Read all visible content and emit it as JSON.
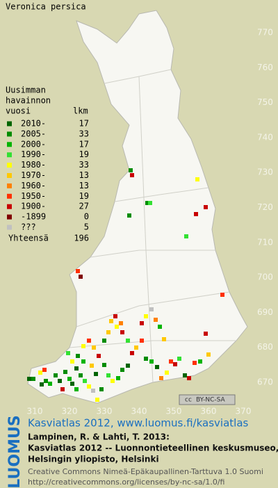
{
  "title": "Veronica persica",
  "legend": {
    "header": [
      "Uusimman",
      "havainnon",
      "vuosi"
    ],
    "count_header": "lkm",
    "items": [
      {
        "label": "2010-",
        "count": 17,
        "color": "#006400"
      },
      {
        "label": "2005-",
        "count": 33,
        "color": "#008c00"
      },
      {
        "label": "2000-",
        "count": 17,
        "color": "#00b400"
      },
      {
        "label": "1990-",
        "count": 19,
        "color": "#33e033"
      },
      {
        "label": "1980-",
        "count": 33,
        "color": "#ffff00"
      },
      {
        "label": "1970-",
        "count": 13,
        "color": "#ffc800"
      },
      {
        "label": "1960-",
        "count": 13,
        "color": "#ff8000"
      },
      {
        "label": "1950-",
        "count": 19,
        "color": "#ff3000"
      },
      {
        "label": "1900-",
        "count": 27,
        "color": "#c80000"
      },
      {
        "label": "-1899",
        "count": 0,
        "color": "#800000"
      },
      {
        "label": "???",
        "count": 5,
        "color": "#c0c0c0"
      }
    ],
    "total_label": "Yhteensä",
    "total": 196
  },
  "grid": {
    "y_labels": [
      "770",
      "760",
      "750",
      "740",
      "730",
      "720",
      "710",
      "700",
      "690",
      "680",
      "670"
    ],
    "x_labels": [
      "310",
      "320",
      "330",
      "340",
      "350",
      "360",
      "370"
    ]
  },
  "badge": {
    "icon": "cc",
    "text": "BY-NC-SA"
  },
  "footer": {
    "brand": "LUOMUS",
    "link": "Kasviatlas 2012, www.luomus.fi/kasviatlas",
    "citation": [
      "Lampinen, R. & Lahti, T. 2013:",
      "Kasviatlas 2012 -- Luonnontieteellinen keskusmuseo,",
      "Helsingin yliopisto, Helsinki"
    ],
    "license": [
      "Creative Commons Nimeä-Epäkaupallinen-Tarttuva 1.0 Suomi",
      "http://creativecommons.org/licenses/by-nc-sa/1.0/fi"
    ]
  }
}
